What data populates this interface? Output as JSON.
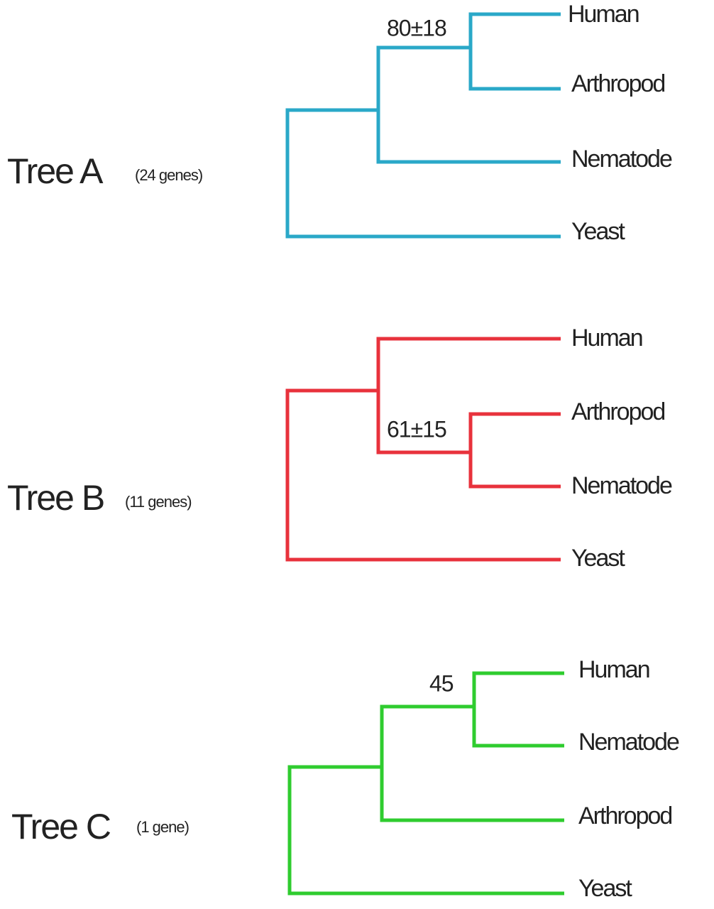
{
  "trees": [
    {
      "title": "Tree A",
      "genes": "(24 genes)",
      "leaves": [
        "Human",
        "Arthropod",
        "Nematode",
        "Yeast"
      ],
      "node_label": "80±18"
    },
    {
      "title": "Tree B",
      "genes": "(11 genes)",
      "leaves": [
        "Human",
        "Arthropod",
        "Nematode",
        "Yeast"
      ],
      "node_label": "61±15"
    },
    {
      "title": "Tree C",
      "genes": "(1 gene)",
      "leaves": [
        "Human",
        "Nematode",
        "Arthropod",
        "Yeast"
      ],
      "node_label": "45"
    }
  ]
}
